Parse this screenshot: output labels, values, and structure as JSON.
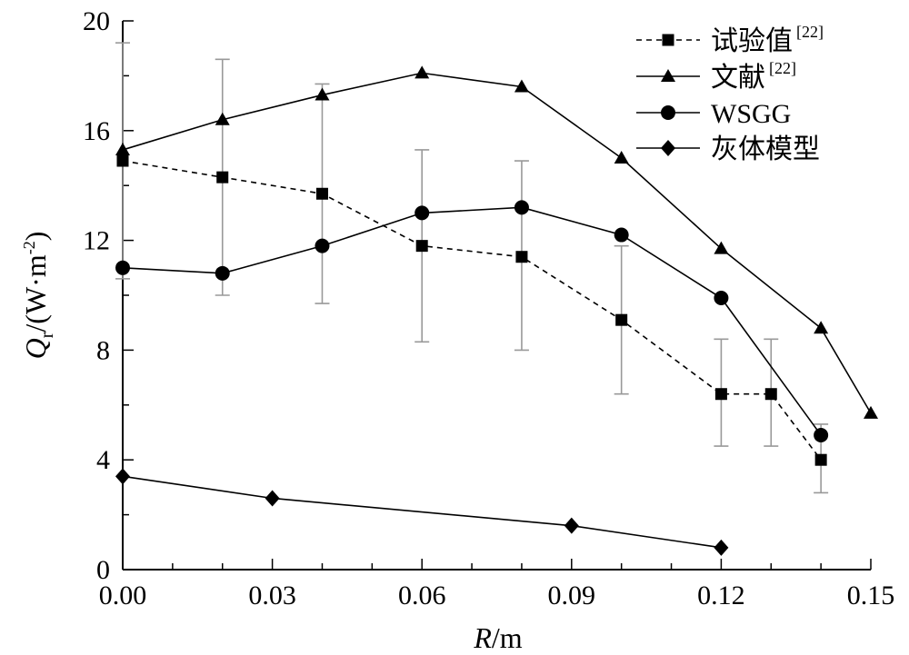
{
  "chart_data": {
    "type": "line",
    "xlabel": {
      "var": "R",
      "unit": "/m"
    },
    "ylabel": {
      "var": "Q",
      "sub": "r",
      "unit": "/(W·m",
      "sup": "-2",
      "close": ")"
    },
    "xlim": [
      0,
      0.15
    ],
    "ylim": [
      0,
      20
    ],
    "xticks": [
      "0.00",
      "0.03",
      "0.06",
      "0.09",
      "0.12",
      "0.15"
    ],
    "yticks": [
      "0",
      "4",
      "8",
      "12",
      "16",
      "20"
    ],
    "series": [
      {
        "name": "试验值",
        "name_sup": "[22]",
        "marker": "square",
        "dash": true,
        "x": [
          0.0,
          0.02,
          0.04,
          0.06,
          0.08,
          0.1,
          0.12,
          0.13,
          0.14
        ],
        "y": [
          14.9,
          14.3,
          13.7,
          11.8,
          11.4,
          9.1,
          6.4,
          6.4,
          4.0
        ],
        "err_low": [
          10.6,
          10.0,
          9.7,
          8.3,
          8.0,
          6.4,
          4.5,
          4.5,
          2.8
        ],
        "err_high": [
          19.2,
          18.6,
          17.7,
          15.3,
          14.9,
          11.8,
          8.4,
          8.4,
          5.3
        ]
      },
      {
        "name": "文献",
        "name_sup": "[22]",
        "marker": "triangle",
        "dash": false,
        "x": [
          0.0,
          0.02,
          0.04,
          0.06,
          0.08,
          0.1,
          0.12,
          0.14,
          0.15
        ],
        "y": [
          15.3,
          16.4,
          17.3,
          18.1,
          17.6,
          15.0,
          11.7,
          8.8,
          5.7
        ]
      },
      {
        "name": "WSGG",
        "name_sup": "",
        "marker": "circle",
        "dash": false,
        "x": [
          0.0,
          0.02,
          0.04,
          0.06,
          0.08,
          0.1,
          0.12,
          0.14
        ],
        "y": [
          11.0,
          10.8,
          11.8,
          13.0,
          13.2,
          12.2,
          9.9,
          4.9
        ]
      },
      {
        "name": "灰体模型",
        "name_sup": "",
        "marker": "diamond",
        "dash": false,
        "x": [
          0.0,
          0.03,
          0.09,
          0.12
        ],
        "y": [
          3.4,
          2.6,
          1.6,
          0.8
        ]
      }
    ],
    "legend_position": "top-right",
    "grid": false
  }
}
